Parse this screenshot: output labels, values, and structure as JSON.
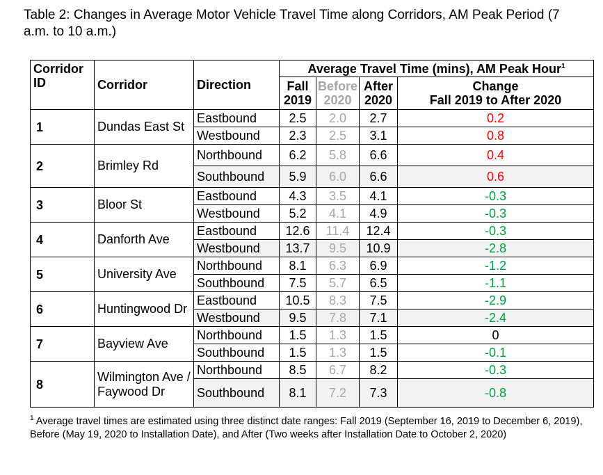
{
  "title": "Table 2: Changes in Average Motor Vehicle Travel Time along Corridors, AM Peak Period (7 a.m. to 10 a.m.)",
  "headers": {
    "corridor_id": "Corridor ID",
    "corridor": "Corridor",
    "direction": "Direction",
    "group": "Average Travel Time (mins), AM Peak Hour",
    "group_sup": "1",
    "fall_a": "Fall",
    "fall_b": "2019",
    "before_a": "Before",
    "before_b": "2020",
    "after_a": "After",
    "after_b": "2020",
    "change_a": "Change",
    "change_b": "Fall 2019 to After 2020"
  },
  "corridors": [
    {
      "id": "1",
      "name": "Dundas East St",
      "rows": [
        {
          "direction": "Eastbound",
          "fall": "2.5",
          "before": "2.0",
          "after": "2.7",
          "change": "0.2"
        },
        {
          "direction": "Westbound",
          "fall": "2.3",
          "before": "2.5",
          "after": "3.1",
          "change": "0.8"
        }
      ]
    },
    {
      "id": "2",
      "name": "Brimley Rd",
      "rows": [
        {
          "direction": "Northbound",
          "fall": "6.2",
          "before": "5.8",
          "after": "6.6",
          "change": "0.4"
        },
        {
          "direction": "Southbound",
          "fall": "5.9",
          "before": "6.0",
          "after": "6.6",
          "change": "0.6"
        }
      ]
    },
    {
      "id": "3",
      "name": "Bloor St",
      "rows": [
        {
          "direction": "Eastbound",
          "fall": "4.3",
          "before": "3.5",
          "after": "4.1",
          "change": "-0.3"
        },
        {
          "direction": "Westbound",
          "fall": "5.2",
          "before": "4.1",
          "after": "4.9",
          "change": "-0.3"
        }
      ]
    },
    {
      "id": "4",
      "name": "Danforth Ave",
      "rows": [
        {
          "direction": "Eastbound",
          "fall": "12.6",
          "before": "11.4",
          "after": "12.4",
          "change": "-0.3"
        },
        {
          "direction": "Westbound",
          "fall": "13.7",
          "before": "9.5",
          "after": "10.9",
          "change": "-2.8"
        }
      ]
    },
    {
      "id": "5",
      "name": "University Ave",
      "rows": [
        {
          "direction": "Northbound",
          "fall": "8.1",
          "before": "6.3",
          "after": "6.9",
          "change": "-1.2"
        },
        {
          "direction": "Southbound",
          "fall": "7.5",
          "before": "5.7",
          "after": "6.5",
          "change": "-1.1"
        }
      ]
    },
    {
      "id": "6",
      "name": "Huntingwood Dr",
      "rows": [
        {
          "direction": "Eastbound",
          "fall": "10.5",
          "before": "8.3",
          "after": "7.5",
          "change": "-2.9"
        },
        {
          "direction": "Westbound",
          "fall": "9.5",
          "before": "7.8",
          "after": "7.1",
          "change": "-2.4"
        }
      ]
    },
    {
      "id": "7",
      "name": "Bayview Ave",
      "rows": [
        {
          "direction": "Northbound",
          "fall": "1.5",
          "before": "1.3",
          "after": "1.5",
          "change": "0"
        },
        {
          "direction": "Southbound",
          "fall": "1.5",
          "before": "1.3",
          "after": "1.5",
          "change": "-0.1"
        }
      ]
    },
    {
      "id": "8",
      "name": "Wilmington Ave / Faywood Dr",
      "rows": [
        {
          "direction": "Northbound",
          "fall": "8.5",
          "before": "6.7",
          "after": "8.2",
          "change": "-0.3"
        },
        {
          "direction": "Southbound",
          "fall": "8.1",
          "before": "7.2",
          "after": "7.3",
          "change": "-0.8"
        }
      ]
    }
  ],
  "footnote_mark": "1",
  "footnote": "Average travel times are estimated using three distinct date ranges: Fall 2019 (September 16, 2019 to December 6, 2019), Before (May 19, 2020 to Installation Date), and After (Two weeks after Installation Date to October 2, 2020)",
  "colors": {
    "increase": "#ff0000",
    "decrease": "#00a040",
    "before": "#a6a6a6",
    "shaded": "#f2f2f2"
  }
}
